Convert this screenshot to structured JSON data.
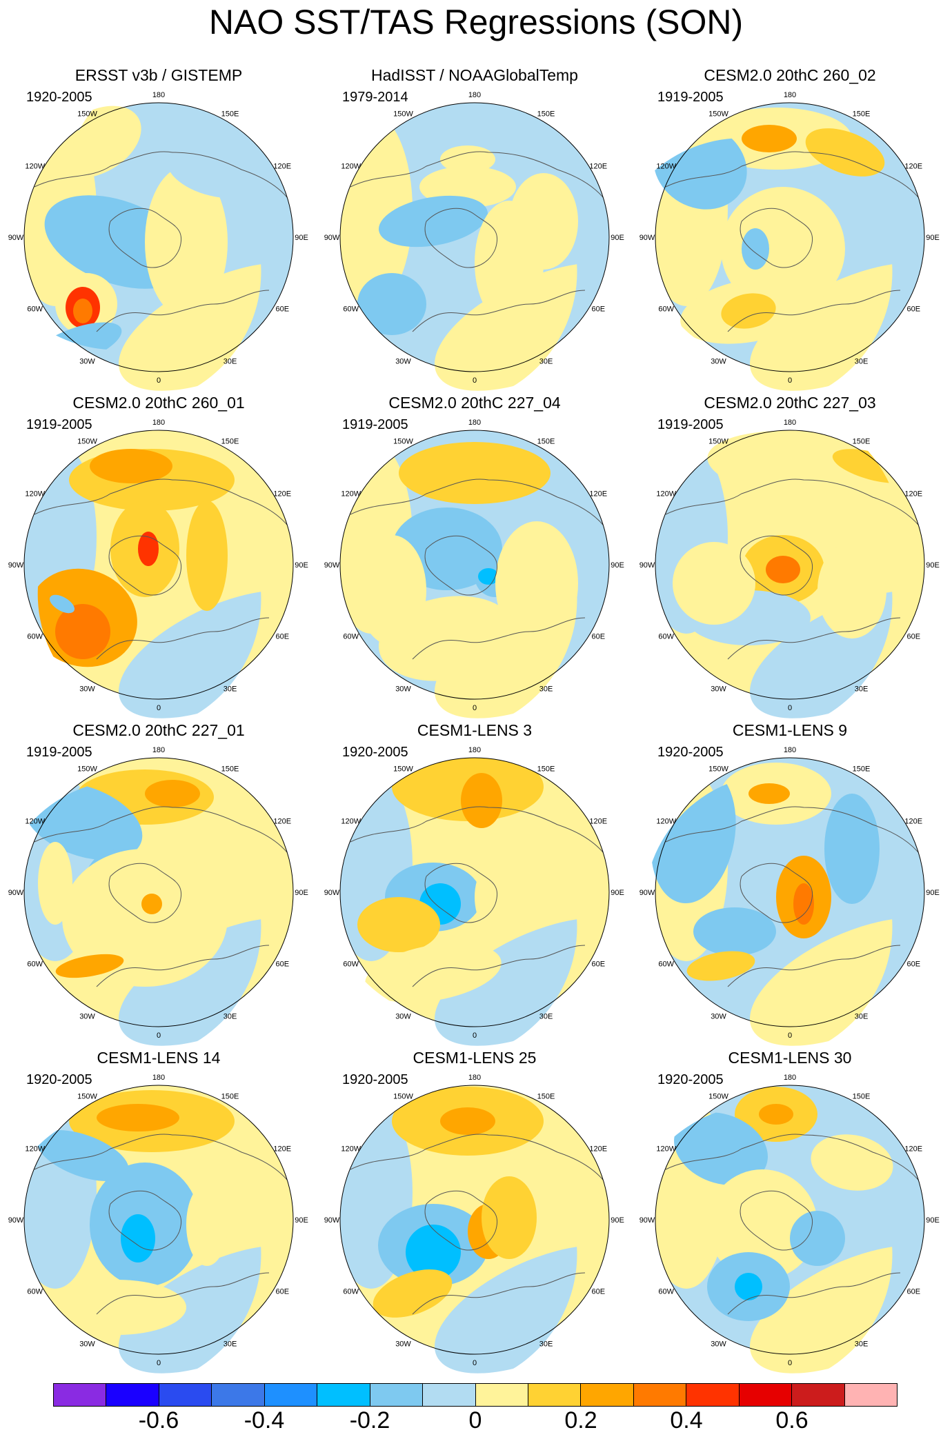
{
  "title": "NAO SST/TAS Regressions (SON)",
  "longitude_ticks": [
    "180",
    "150E",
    "120E",
    "90E",
    "60E",
    "30E",
    "0",
    "30W",
    "60W",
    "90W",
    "120W",
    "150W"
  ],
  "colorbar": {
    "colors": [
      "#8a2be2",
      "#1a00ff",
      "#2a4bf0",
      "#3c78e8",
      "#1e90ff",
      "#00bfff",
      "#7ec9f0",
      "#b2dcf2",
      "#fff39a",
      "#ffd233",
      "#ffa600",
      "#ff7a00",
      "#ff3300",
      "#e60000",
      "#cc1c1c",
      "#ffb3b3"
    ],
    "labels": [
      "-0.6",
      "-0.4",
      "-0.2",
      "0",
      "0.2",
      "0.4",
      "0.6"
    ]
  },
  "panels": [
    {
      "title": "ERSST v3b / GISTEMP",
      "years": "1920-2005"
    },
    {
      "title": "HadISST / NOAAGlobalTemp",
      "years": "1979-2014"
    },
    {
      "title": "CESM2.0 20thC 260_02",
      "years": "1919-2005"
    },
    {
      "title": "CESM2.0 20thC 260_01",
      "years": "1919-2005"
    },
    {
      "title": "CESM2.0 20thC 227_04",
      "years": "1919-2005"
    },
    {
      "title": "CESM2.0 20thC 227_03",
      "years": "1919-2005"
    },
    {
      "title": "CESM2.0 20thC 227_01",
      "years": "1919-2005"
    },
    {
      "title": "CESM1-LENS 3",
      "years": "1920-2005"
    },
    {
      "title": "CESM1-LENS 9",
      "years": "1920-2005"
    },
    {
      "title": "CESM1-LENS 14",
      "years": "1920-2005"
    },
    {
      "title": "CESM1-LENS 25",
      "years": "1920-2005"
    },
    {
      "title": "CESM1-LENS 30",
      "years": "1920-2005"
    }
  ]
}
